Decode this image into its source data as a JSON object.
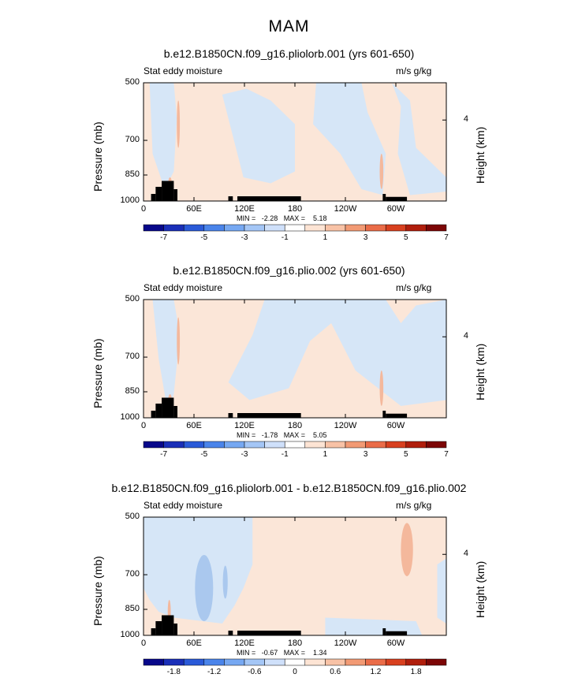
{
  "figure_title": "MAM",
  "chart_data": [
    {
      "type": "heatmap",
      "title": "b.e12.B1850CN.f09_g16.pliolorb.001 (yrs 601-650)",
      "subtitle_left": "Stat eddy moisture",
      "subtitle_right": "m/s g/kg",
      "ylabel": "Pressure (mb)",
      "ylabel_right": "Height (km)",
      "yticks": [
        "500",
        "700",
        "850",
        "1000"
      ],
      "ytick_right": "4",
      "xticks": [
        "0",
        "60E",
        "120E",
        "180",
        "120W",
        "60W"
      ],
      "xlim": [
        0,
        360
      ],
      "ylim": [
        1000,
        500
      ],
      "min_text": "MIN =   -2.28   MAX =    5.18",
      "colorbar_labels": [
        "-7",
        "-5",
        "-3",
        "-1",
        "1",
        "3",
        "5",
        "7"
      ]
    },
    {
      "type": "heatmap",
      "title": "b.e12.B1850CN.f09_g16.plio.002 (yrs 601-650)",
      "subtitle_left": "Stat eddy moisture",
      "subtitle_right": "m/s g/kg",
      "ylabel": "Pressure (mb)",
      "ylabel_right": "Height (km)",
      "yticks": [
        "500",
        "700",
        "850",
        "1000"
      ],
      "ytick_right": "4",
      "xticks": [
        "0",
        "60E",
        "120E",
        "180",
        "120W",
        "60W"
      ],
      "xlim": [
        0,
        360
      ],
      "ylim": [
        1000,
        500
      ],
      "min_text": "MIN =   -1.78   MAX =    5.05",
      "colorbar_labels": [
        "-7",
        "-5",
        "-3",
        "-1",
        "1",
        "3",
        "5",
        "7"
      ]
    },
    {
      "type": "heatmap",
      "title": "b.e12.B1850CN.f09_g16.pliolorb.001 - b.e12.B1850CN.f09_g16.plio.002",
      "subtitle_left": "Stat eddy moisture",
      "subtitle_right": "m/s g/kg",
      "ylabel": "Pressure (mb)",
      "ylabel_right": "Height (km)",
      "yticks": [
        "500",
        "700",
        "850",
        "1000"
      ],
      "ytick_right": "4",
      "xticks": [
        "0",
        "60E",
        "120E",
        "180",
        "120W",
        "60W"
      ],
      "xlim": [
        0,
        360
      ],
      "ylim": [
        1000,
        500
      ],
      "min_text": "MIN =   -0.67   MAX =    1.34",
      "colorbar_labels": [
        "-1.8",
        "-1.2",
        "-0.6",
        "0",
        "0.6",
        "1.2",
        "1.8"
      ]
    }
  ],
  "colors": {
    "pos_light": "#fbe6d8",
    "neg_light": "#d6e6f7",
    "neg_mid": "#aac8ee",
    "pos_mid": "#f4b89c",
    "topo": "#000000",
    "colorbar": [
      "#08088a",
      "#1a2fb8",
      "#2a5ad8",
      "#4a84ea",
      "#76a8f2",
      "#a4c6f6",
      "#cfe0fa",
      "#ffffff",
      "#fde4d4",
      "#f8c2a6",
      "#f29a74",
      "#ea6c48",
      "#d8401f",
      "#b01e0c",
      "#7c0606"
    ]
  }
}
